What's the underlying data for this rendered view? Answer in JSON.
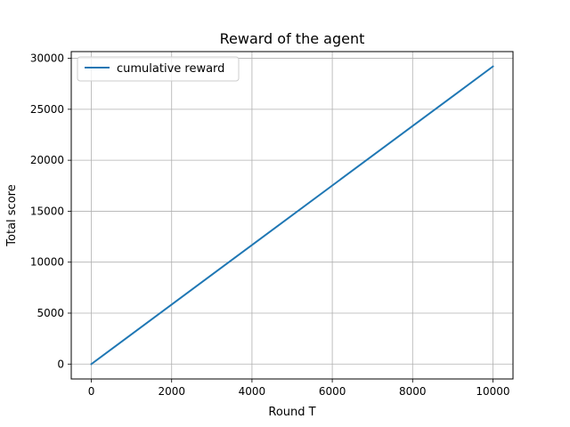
{
  "chart_data": {
    "type": "line",
    "title": "Reward of the agent",
    "xlabel": "Round T",
    "ylabel": "Total score",
    "xlim": [
      -500,
      10500
    ],
    "ylim": [
      -1460,
      30660
    ],
    "x_ticks": [
      0,
      2000,
      4000,
      6000,
      8000,
      10000
    ],
    "y_ticks": [
      0,
      5000,
      10000,
      15000,
      20000,
      25000,
      30000
    ],
    "grid": true,
    "legend_position": "top-left",
    "series": [
      {
        "name": "cumulative reward",
        "color": "#1f77b4",
        "x": [
          0,
          10000
        ],
        "y": [
          0,
          29200
        ]
      }
    ]
  }
}
